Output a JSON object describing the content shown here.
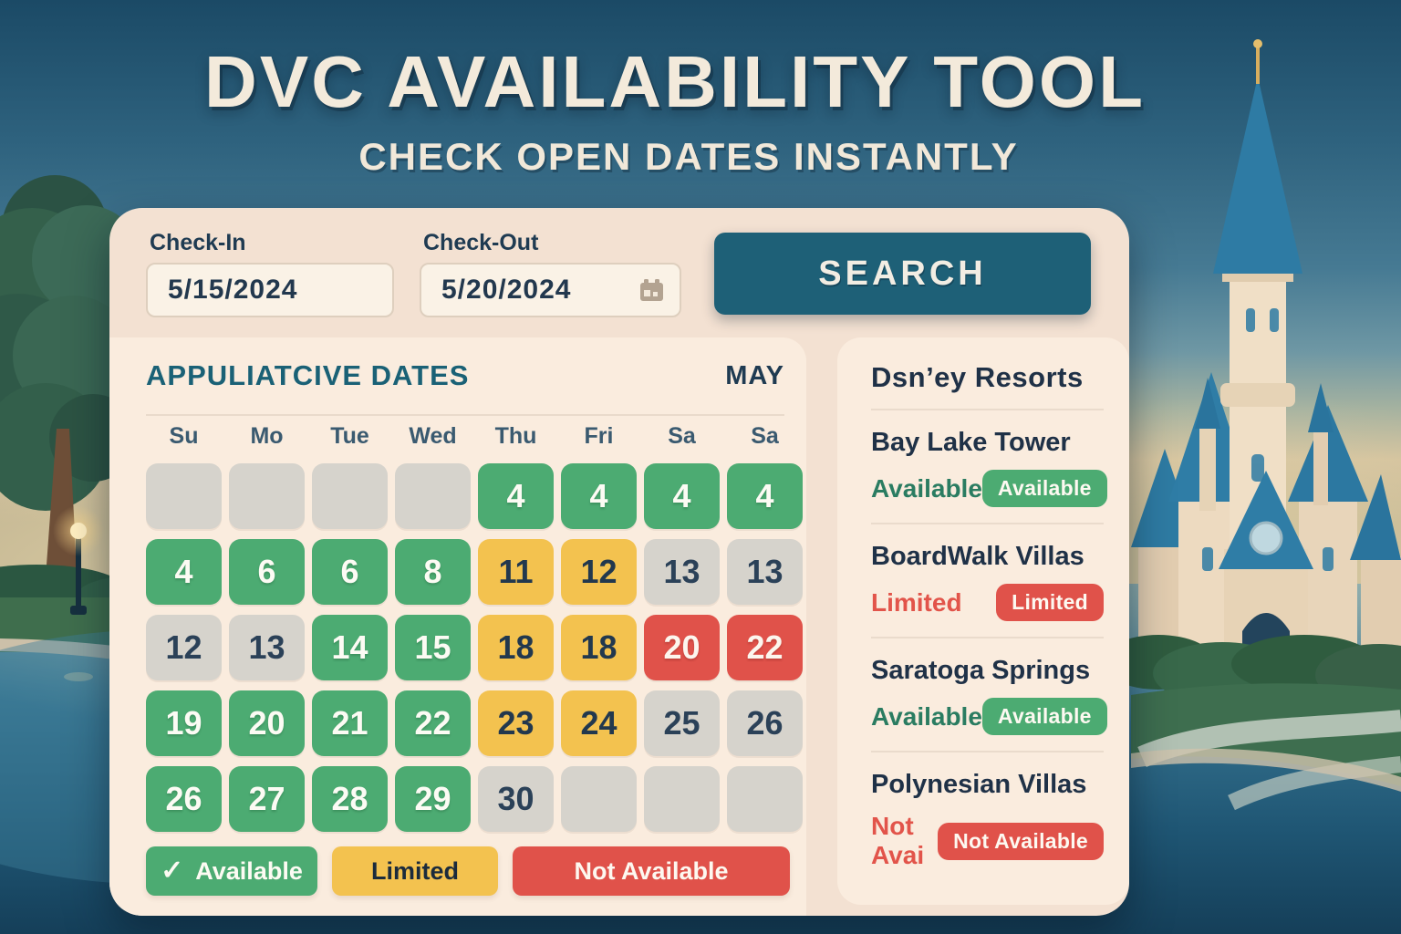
{
  "page": {
    "title": "DVC AVAILABILITY TOOL",
    "subtitle": "CHECK OPEN DATES INSTANTLY"
  },
  "form": {
    "check_in": {
      "label": "Check-In",
      "value": "5/15/2024"
    },
    "check_out": {
      "label": "Check-Out",
      "value": "5/20/2024",
      "icon": "calendar-icon"
    },
    "search_label": "SEARCH"
  },
  "calendar": {
    "heading": "APPULIATCIVE DATES",
    "month": "MAY",
    "day_headers": [
      "Su",
      "Mo",
      "Tue",
      "Wed",
      "Thu",
      "Fri",
      "Sa",
      "Sa"
    ],
    "cells": [
      {
        "label": "",
        "status": "inactive"
      },
      {
        "label": "",
        "status": "inactive"
      },
      {
        "label": "",
        "status": "inactive"
      },
      {
        "label": "",
        "status": "inactive"
      },
      {
        "label": "4",
        "status": "available"
      },
      {
        "label": "4",
        "status": "available"
      },
      {
        "label": "4",
        "status": "available"
      },
      {
        "label": "4",
        "status": "available"
      },
      {
        "label": "4",
        "status": "available"
      },
      {
        "label": "6",
        "status": "available"
      },
      {
        "label": "6",
        "status": "available"
      },
      {
        "label": "8",
        "status": "available"
      },
      {
        "label": "11",
        "status": "limited"
      },
      {
        "label": "12",
        "status": "limited"
      },
      {
        "label": "13",
        "status": "inactive"
      },
      {
        "label": "13",
        "status": "inactive"
      },
      {
        "label": "12",
        "status": "inactive"
      },
      {
        "label": "13",
        "status": "inactive"
      },
      {
        "label": "14",
        "status": "available"
      },
      {
        "label": "15",
        "status": "available"
      },
      {
        "label": "18",
        "status": "limited"
      },
      {
        "label": "18",
        "status": "limited"
      },
      {
        "label": "20",
        "status": "not-available"
      },
      {
        "label": "22",
        "status": "not-available"
      },
      {
        "label": "19",
        "status": "available"
      },
      {
        "label": "20",
        "status": "available"
      },
      {
        "label": "21",
        "status": "available"
      },
      {
        "label": "22",
        "status": "available"
      },
      {
        "label": "23",
        "status": "limited"
      },
      {
        "label": "24",
        "status": "limited"
      },
      {
        "label": "25",
        "status": "inactive"
      },
      {
        "label": "26",
        "status": "inactive"
      },
      {
        "label": "26",
        "status": "available"
      },
      {
        "label": "27",
        "status": "available"
      },
      {
        "label": "28",
        "status": "available"
      },
      {
        "label": "29",
        "status": "available"
      },
      {
        "label": "30",
        "status": "inactive"
      },
      {
        "label": "",
        "status": "inactive"
      },
      {
        "label": "",
        "status": "inactive"
      },
      {
        "label": "",
        "status": "inactive"
      }
    ],
    "legend": [
      {
        "label": "Available",
        "status": "available",
        "icon": "check-icon"
      },
      {
        "label": "Limited",
        "status": "limited",
        "icon": null
      },
      {
        "label": "Not Available",
        "status": "not-available",
        "icon": null
      }
    ]
  },
  "resorts": {
    "heading": "Dsn’ey Resorts",
    "items": [
      {
        "name": "Bay Lake Tower",
        "status_text": "Available",
        "status_tone": "green",
        "badge_label": "Available",
        "badge_tone": "green"
      },
      {
        "name": "BoardWalk Villas",
        "status_text": "Limited",
        "status_tone": "red",
        "badge_label": "Limited",
        "badge_tone": "red"
      },
      {
        "name": "Saratoga Springs",
        "status_text": "Available",
        "status_tone": "green",
        "badge_label": "Available",
        "badge_tone": "green"
      },
      {
        "name": "Polynesian Villas",
        "status_text": "Not Avai",
        "status_tone": "red",
        "badge_label": "Not Available",
        "badge_tone": "red"
      }
    ]
  },
  "colors": {
    "available_green": "#4CAB72",
    "limited_yellow": "#F3C24F",
    "unavailable_red": "#E0524A",
    "inactive_gray": "#D6D3CC",
    "teal_button": "#1E6077",
    "heading_teal": "#1A6176",
    "navy_text": "#21384E",
    "status_green_text": "#2A7C61",
    "status_red_text": "#E2544A"
  }
}
